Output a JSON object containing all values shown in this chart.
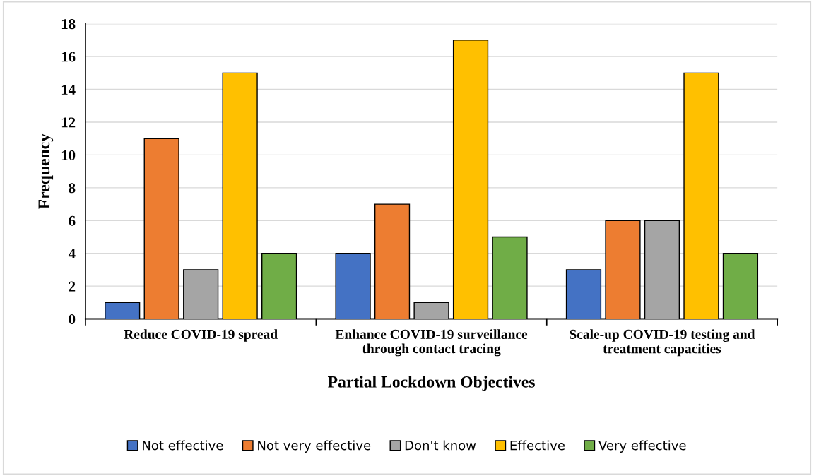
{
  "chart_data": {
    "type": "bar",
    "xlabel": "Partial Lockdown Objectives",
    "ylabel": "Frequency",
    "categories": [
      "Reduce COVID-19 spread",
      "Enhance COVID-19 surveillance through contact tracing",
      "Scale-up COVID-19 testing and treatment capacities"
    ],
    "series": [
      {
        "name": "Not effective",
        "color": "#4472c4",
        "values": [
          1,
          4,
          3
        ]
      },
      {
        "name": "Not very effective",
        "color": "#ed7d31",
        "values": [
          11,
          7,
          6
        ]
      },
      {
        "name": "Don't know",
        "color": "#a5a5a5",
        "values": [
          3,
          1,
          6
        ]
      },
      {
        "name": "Effective",
        "color": "#ffc000",
        "values": [
          15,
          17,
          15
        ]
      },
      {
        "name": "Very effective",
        "color": "#70ad47",
        "values": [
          4,
          5,
          4
        ]
      }
    ],
    "ylim": [
      0,
      18
    ],
    "yticks": [
      0,
      2,
      4,
      6,
      8,
      10,
      12,
      14,
      16,
      18
    ],
    "grid": "y",
    "legend": "bottom"
  }
}
